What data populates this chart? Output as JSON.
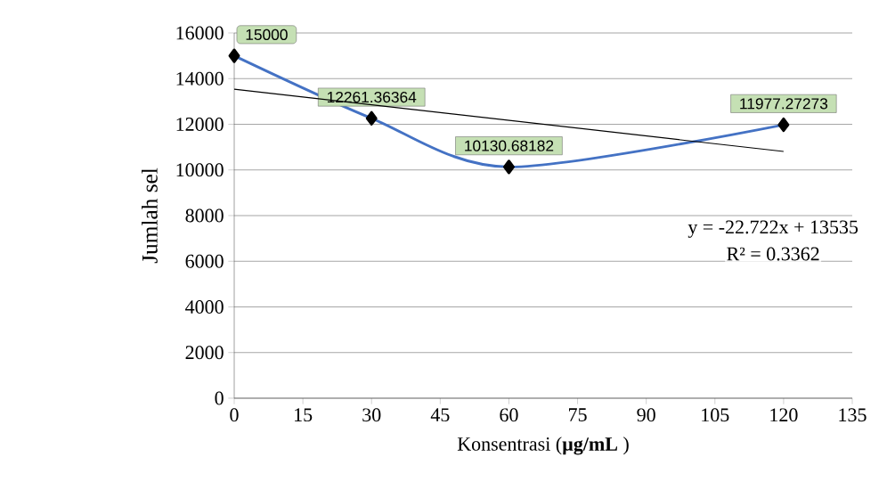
{
  "chart_data": {
    "type": "line",
    "xlabel": "Konsentrasi (**µg/mL** )",
    "ylabel": "Jumlah sel",
    "xlim": [
      0,
      135
    ],
    "xticks": [
      0,
      15,
      30,
      45,
      60,
      75,
      90,
      105,
      120,
      135
    ],
    "ylim": [
      0,
      16000
    ],
    "yticks": [
      0,
      2000,
      4000,
      6000,
      8000,
      10000,
      12000,
      14000,
      16000
    ],
    "grid": "y",
    "annotations": [
      "y = -22.722x + 13535",
      "R² = 0.3362"
    ],
    "series": [
      {
        "x": [
          0,
          30,
          60,
          120
        ],
        "values": [
          15000,
          12261.36364,
          10130.68182,
          11977.27273
        ],
        "color": "#4472c4",
        "marker": "diamond",
        "value_labels": [
          "15000",
          "12261.36364",
          "10130.68182",
          "11977.27273"
        ]
      },
      {
        "x": [
          0,
          120
        ],
        "values": [
          13535,
          10808
        ],
        "color": "#000000",
        "marker": "none"
      }
    ]
  }
}
